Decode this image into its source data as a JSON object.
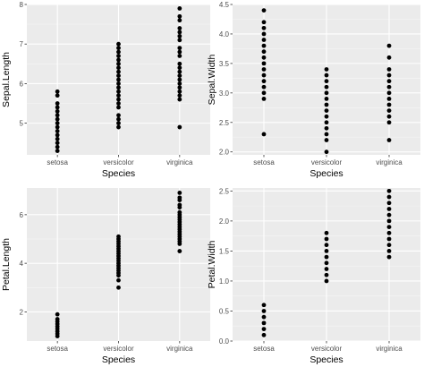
{
  "colors": {
    "panel_background": "#ebebeb",
    "major_grid": "#ffffff",
    "minor_grid": "#f5f5f5",
    "points": "#000000",
    "tick_text": "#4d4d4d"
  },
  "chart_data": [
    {
      "type": "scatter",
      "xlabel": "Species",
      "ylabel": "Sepal.Length",
      "categories": [
        "setosa",
        "versicolor",
        "virginica"
      ],
      "ylim": [
        4.2,
        8.0
      ],
      "yticks": [
        5,
        6,
        7,
        8
      ],
      "ytick_labels": [
        "5",
        "6",
        "7",
        "8"
      ],
      "grid": true,
      "series": [
        {
          "category": "setosa",
          "values": [
            4.3,
            4.4,
            4.5,
            4.6,
            4.7,
            4.8,
            4.9,
            5.0,
            5.1,
            5.2,
            5.3,
            5.4,
            5.5,
            5.7,
            5.8
          ]
        },
        {
          "category": "versicolor",
          "values": [
            4.9,
            5.0,
            5.1,
            5.2,
            5.4,
            5.5,
            5.6,
            5.7,
            5.8,
            5.9,
            6.0,
            6.1,
            6.2,
            6.3,
            6.4,
            6.5,
            6.6,
            6.7,
            6.8,
            6.9,
            7.0
          ]
        },
        {
          "category": "virginica",
          "values": [
            4.9,
            5.6,
            5.7,
            5.8,
            5.9,
            6.0,
            6.1,
            6.2,
            6.3,
            6.4,
            6.5,
            6.7,
            6.8,
            6.9,
            7.1,
            7.2,
            7.3,
            7.4,
            7.6,
            7.7,
            7.9
          ]
        }
      ]
    },
    {
      "type": "scatter",
      "xlabel": "Species",
      "ylabel": "Sepal.Width",
      "categories": [
        "setosa",
        "versicolor",
        "virginica"
      ],
      "ylim": [
        1.95,
        4.5
      ],
      "yticks": [
        2.0,
        2.5,
        3.0,
        3.5,
        4.0,
        4.5
      ],
      "ytick_labels": [
        "2.0",
        "2.5",
        "3.0",
        "3.5",
        "4.0",
        "4.5"
      ],
      "grid": true,
      "series": [
        {
          "category": "setosa",
          "values": [
            2.3,
            2.9,
            3.0,
            3.1,
            3.2,
            3.3,
            3.4,
            3.5,
            3.6,
            3.7,
            3.8,
            3.9,
            4.0,
            4.1,
            4.2,
            4.4
          ]
        },
        {
          "category": "versicolor",
          "values": [
            2.0,
            2.2,
            2.3,
            2.4,
            2.5,
            2.6,
            2.7,
            2.8,
            2.9,
            3.0,
            3.1,
            3.2,
            3.3,
            3.4
          ]
        },
        {
          "category": "virginica",
          "values": [
            2.2,
            2.5,
            2.6,
            2.7,
            2.8,
            2.9,
            3.0,
            3.1,
            3.2,
            3.3,
            3.4,
            3.6,
            3.8
          ]
        }
      ]
    },
    {
      "type": "scatter",
      "xlabel": "Species",
      "ylabel": "Petal.Length",
      "categories": [
        "setosa",
        "versicolor",
        "virginica"
      ],
      "ylim": [
        0.8,
        7.1
      ],
      "yticks": [
        2,
        4,
        6
      ],
      "ytick_labels": [
        "2",
        "4",
        "6"
      ],
      "grid": true,
      "series": [
        {
          "category": "setosa",
          "values": [
            1.0,
            1.1,
            1.2,
            1.3,
            1.4,
            1.5,
            1.6,
            1.7,
            1.9
          ]
        },
        {
          "category": "versicolor",
          "values": [
            3.0,
            3.3,
            3.5,
            3.6,
            3.7,
            3.8,
            3.9,
            4.0,
            4.1,
            4.2,
            4.3,
            4.4,
            4.5,
            4.6,
            4.7,
            4.8,
            4.9,
            5.0,
            5.1
          ]
        },
        {
          "category": "virginica",
          "values": [
            4.5,
            4.8,
            4.9,
            5.0,
            5.1,
            5.2,
            5.3,
            5.4,
            5.5,
            5.6,
            5.7,
            5.8,
            5.9,
            6.0,
            6.1,
            6.3,
            6.4,
            6.6,
            6.7,
            6.9
          ]
        }
      ]
    },
    {
      "type": "scatter",
      "xlabel": "Species",
      "ylabel": "Petal.Width",
      "categories": [
        "setosa",
        "versicolor",
        "virginica"
      ],
      "ylim": [
        0.0,
        2.55
      ],
      "yticks": [
        0.0,
        0.5,
        1.0,
        1.5,
        2.0,
        2.5
      ],
      "ytick_labels": [
        "0.0",
        "0.5",
        "1.0",
        "1.5",
        "2.0",
        "2.5"
      ],
      "grid": true,
      "series": [
        {
          "category": "setosa",
          "values": [
            0.1,
            0.2,
            0.3,
            0.4,
            0.5,
            0.6
          ]
        },
        {
          "category": "versicolor",
          "values": [
            1.0,
            1.1,
            1.2,
            1.3,
            1.4,
            1.5,
            1.6,
            1.7,
            1.8
          ]
        },
        {
          "category": "virginica",
          "values": [
            1.4,
            1.5,
            1.6,
            1.7,
            1.8,
            1.9,
            2.0,
            2.1,
            2.2,
            2.3,
            2.4,
            2.5
          ]
        }
      ]
    }
  ]
}
